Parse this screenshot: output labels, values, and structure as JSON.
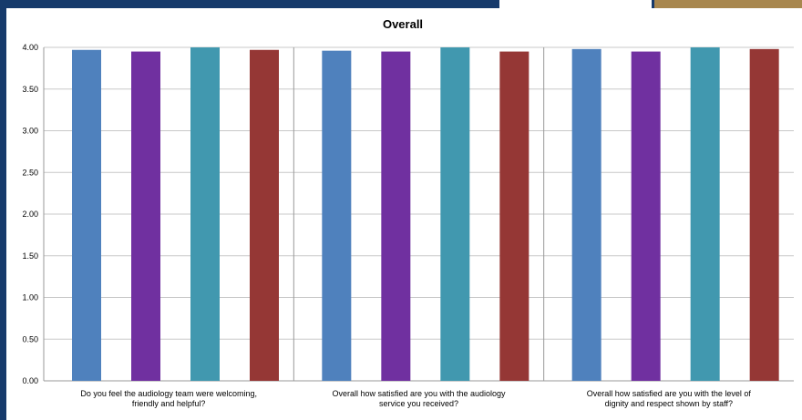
{
  "colors": {
    "page_background": "#163a6b",
    "accent_gold": "#a8874e",
    "gridline": "#c8c8c8",
    "series_colors": [
      "#4f81bd",
      "#7030a0",
      "#4198af",
      "#953735"
    ]
  },
  "chart_data": {
    "type": "bar",
    "title": "Overall",
    "xlabel": "",
    "ylabel": "",
    "ylim": [
      0,
      4
    ],
    "yticks": [
      "0.00",
      "0.50",
      "1.00",
      "1.50",
      "2.00",
      "2.50",
      "3.00",
      "3.50",
      "4.00"
    ],
    "grid": true,
    "legend": "none",
    "categories": [
      [
        "Do you feel the audiology team were welcoming,",
        "friendly and helpful?"
      ],
      [
        "Overall how satisfied are you with the audiology",
        "service you received?"
      ],
      [
        "Overall how satisfied are you with the level of",
        "dignity and respect shown by staff?"
      ]
    ],
    "series": [
      {
        "values": [
          3.97,
          3.96,
          3.98
        ]
      },
      {
        "values": [
          3.95,
          3.95,
          3.95
        ]
      },
      {
        "values": [
          4.0,
          4.0,
          4.0
        ]
      },
      {
        "values": [
          3.97,
          3.95,
          3.98
        ]
      }
    ]
  }
}
